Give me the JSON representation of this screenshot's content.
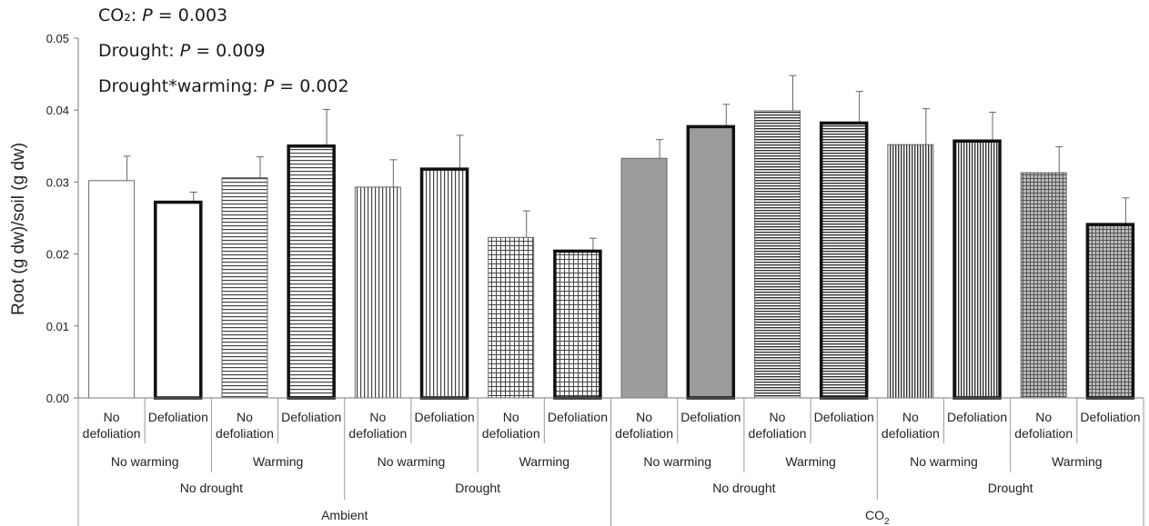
{
  "annotations": [
    {
      "label": "CO₂: ",
      "p": "P",
      "rest": " = 0.003"
    },
    {
      "label": "Drought: ",
      "p": "P",
      "rest": " = 0.009"
    },
    {
      "label": "Drought*warming: ",
      "p": "P",
      "rest": " = 0.002"
    }
  ],
  "chart_data": {
    "type": "bar",
    "ylabel": "Root (g dw)/soil (g dw)",
    "ylim": [
      0,
      0.05
    ],
    "yticks": [
      "0.00",
      "0.01",
      "0.02",
      "0.03",
      "0.04",
      "0.05"
    ],
    "grid": false,
    "categories": [
      [
        "No",
        "defoliation"
      ],
      [
        "Defoliation"
      ],
      [
        "No",
        "defoliation"
      ],
      [
        "Defoliation"
      ],
      [
        "No",
        "defoliation"
      ],
      [
        "Defoliation"
      ],
      [
        "No",
        "defoliation"
      ],
      [
        "Defoliation"
      ],
      [
        "No",
        "defoliation"
      ],
      [
        "Defoliation"
      ],
      [
        "No",
        "defoliation"
      ],
      [
        "Defoliation"
      ],
      [
        "No",
        "defoliation"
      ],
      [
        "Defoliation"
      ],
      [
        "No",
        "defoliation"
      ],
      [
        "Defoliation"
      ]
    ],
    "values": [
      0.0302,
      0.0272,
      0.0306,
      0.035,
      0.0293,
      0.0318,
      0.0223,
      0.0204,
      0.0333,
      0.0377,
      0.0399,
      0.0382,
      0.0352,
      0.0357,
      0.0313,
      0.0241
    ],
    "errors": [
      0.0034,
      0.0014,
      0.0029,
      0.0051,
      0.0038,
      0.0047,
      0.0037,
      0.0018,
      0.0026,
      0.0031,
      0.0049,
      0.0044,
      0.005,
      0.004,
      0.0036,
      0.0037
    ],
    "bar_fills": [
      "white",
      "white",
      "hlines",
      "hlines",
      "vlines",
      "vlines",
      "grid",
      "grid",
      "gray",
      "gray",
      "hlines-dense",
      "hlines-dense",
      "vlines-dense",
      "vlines-dense",
      "grid-gray",
      "grid-gray"
    ],
    "bar_borders": [
      "thin",
      "thick",
      "thin",
      "thick",
      "thin",
      "thick",
      "thin",
      "thick",
      "thin",
      "thick",
      "thin",
      "thick",
      "thin",
      "thick",
      "thin",
      "thick"
    ],
    "group_level_1": [
      "No warming",
      "Warming",
      "No warming",
      "Warming",
      "No warming",
      "Warming",
      "No warming",
      "Warming"
    ],
    "group_level_2": [
      "No drought",
      "Drought",
      "No drought",
      "Drought"
    ],
    "group_level_3": [
      {
        "text": "Ambient",
        "sub": ""
      },
      {
        "text": "CO",
        "sub": "2"
      }
    ]
  }
}
